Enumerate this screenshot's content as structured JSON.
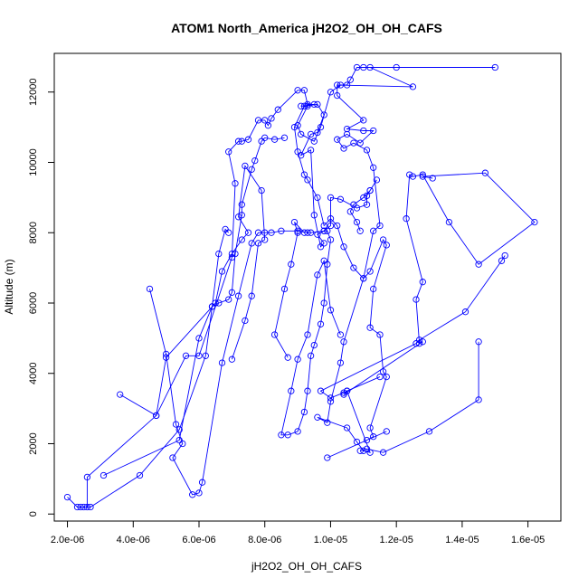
{
  "chart_data": {
    "type": "line",
    "title": "ATOM1 North_America jH2O2_OH_OH_CAFS",
    "xlabel": "jH2O2_OH_OH_CAFS",
    "ylabel": "Altitude (m)",
    "xlim": [
      1.6e-06,
      1.7e-05
    ],
    "ylim": [
      -200,
      13100
    ],
    "x_ticks": [
      2e-06,
      4e-06,
      6e-06,
      8e-06,
      1e-05,
      1.2e-05,
      1.4e-05,
      1.6e-05
    ],
    "x_tick_labels": [
      "2.0e-06",
      "4.0e-06",
      "6.0e-06",
      "8.0e-06",
      "1.0e-05",
      "1.2e-05",
      "1.4e-05",
      "1.6e-05"
    ],
    "y_ticks": [
      0,
      2000,
      4000,
      6000,
      8000,
      10000,
      12000
    ],
    "y_tick_labels": [
      "0",
      "2000",
      "4000",
      "6000",
      "8000",
      "10000",
      "12000"
    ],
    "grid": false,
    "marker": "open-circle",
    "series_color": "#0000ff",
    "series": [
      {
        "points": [
          [
            2e-06,
            480
          ],
          [
            2.3e-06,
            200
          ],
          [
            2.5e-06,
            200
          ],
          [
            2.6e-06,
            200
          ],
          [
            2.6e-06,
            1050
          ],
          [
            4.7e-06,
            2800
          ],
          [
            5.6e-06,
            4500
          ],
          [
            6e-06,
            4500
          ],
          [
            7e-06,
            7300
          ],
          [
            7.1e-06,
            9400
          ],
          [
            6.9e-06,
            10300
          ],
          [
            7.2e-06,
            10600
          ],
          [
            7.3e-06,
            10600
          ],
          [
            7.5e-06,
            10650
          ],
          [
            7.8e-06,
            11200
          ],
          [
            8e-06,
            11200
          ],
          [
            8.1e-06,
            11050
          ],
          [
            8.2e-06,
            11250
          ],
          [
            8.4e-06,
            11500
          ],
          [
            9e-06,
            12050
          ],
          [
            9.2e-06,
            12050
          ],
          [
            9.3e-06,
            11650
          ],
          [
            9.5e-06,
            11650
          ],
          [
            9.1e-06,
            11600
          ],
          [
            9.3e-06,
            11600
          ],
          [
            9e-06,
            11050
          ],
          [
            9.1e-06,
            10800
          ],
          [
            9.5e-06,
            10600
          ],
          [
            9.7e-06,
            11000
          ],
          [
            1e-05,
            12000
          ],
          [
            1.03e-05,
            12200
          ],
          [
            1.05e-05,
            12200
          ],
          [
            1.06e-05,
            12350
          ],
          [
            1.08e-05,
            12700
          ],
          [
            1.1e-05,
            12700
          ],
          [
            1.2e-05,
            12700
          ],
          [
            1.5e-05,
            12700
          ],
          [
            1.12e-05,
            12700
          ],
          [
            1.25e-05,
            12150
          ],
          [
            1.02e-05,
            12200
          ],
          [
            1.02e-05,
            11900
          ],
          [
            1.1e-05,
            11200
          ],
          [
            1.05e-05,
            10950
          ],
          [
            1.1e-05,
            10900
          ],
          [
            1.13e-05,
            10900
          ],
          [
            1.09e-05,
            10550
          ],
          [
            1.05e-05,
            10800
          ],
          [
            1.02e-05,
            10650
          ],
          [
            1.04e-05,
            10400
          ],
          [
            1.07e-05,
            10550
          ],
          [
            1.11e-05,
            10350
          ],
          [
            1.13e-05,
            9850
          ],
          [
            1.15e-05,
            8200
          ],
          [
            1.13e-05,
            8050
          ],
          [
            1.1e-05,
            6700
          ],
          [
            1.04e-05,
            4900
          ],
          [
            1.03e-05,
            4300
          ],
          [
            1e-05,
            3200
          ],
          [
            9.9e-06,
            2600
          ],
          [
            9.6e-06,
            2750
          ],
          [
            1.05e-05,
            2450
          ],
          [
            1.08e-05,
            2050
          ],
          [
            1.1e-05,
            1800
          ],
          [
            1.12e-05,
            1750
          ],
          [
            1.05e-05,
            3500
          ],
          [
            1.04e-05,
            3400
          ],
          [
            1.28e-05,
            4900
          ],
          [
            1.27e-05,
            4850
          ],
          [
            1.26e-05,
            6100
          ],
          [
            1.28e-05,
            6600
          ],
          [
            1.23e-05,
            8400
          ],
          [
            1.24e-05,
            9650
          ],
          [
            1.25e-05,
            9600
          ],
          [
            1.28e-05,
            9650
          ],
          [
            1.36e-05,
            8300
          ],
          [
            1.45e-05,
            7100
          ],
          [
            1.62e-05,
            8300
          ],
          [
            1.47e-05,
            9700
          ],
          [
            1.28e-05,
            9600
          ],
          [
            1.31e-05,
            9550
          ]
        ]
      },
      {
        "points": [
          [
            9.9e-06,
            1600
          ],
          [
            1.17e-05,
            2350
          ],
          [
            1.11e-05,
            2100
          ],
          [
            1.13e-05,
            2200
          ],
          [
            1.12e-05,
            2450
          ],
          [
            1.17e-05,
            3900
          ],
          [
            1.16e-05,
            4050
          ],
          [
            1.15e-05,
            5100
          ],
          [
            1.12e-05,
            5300
          ],
          [
            1.13e-05,
            6400
          ],
          [
            1.17e-05,
            7650
          ],
          [
            1.16e-05,
            7800
          ],
          [
            1.12e-05,
            6900
          ],
          [
            1.1e-05,
            6700
          ],
          [
            1.07e-05,
            7000
          ],
          [
            1.04e-05,
            7600
          ],
          [
            1.02e-05,
            8200
          ],
          [
            1e-05,
            8400
          ],
          [
            9.8e-06,
            8200
          ],
          [
            9.6e-06,
            9000
          ],
          [
            9.3e-06,
            9500
          ],
          [
            9.2e-06,
            9650
          ],
          [
            9e-06,
            10300
          ],
          [
            8.9e-06,
            11000
          ],
          [
            9.2e-06,
            11600
          ],
          [
            9.6e-06,
            11650
          ],
          [
            9.8e-06,
            11350
          ],
          [
            9.6e-06,
            10850
          ],
          [
            9.4e-06,
            10800
          ],
          [
            9.1e-06,
            10200
          ],
          [
            9.4e-06,
            10350
          ],
          [
            9.5e-06,
            8500
          ],
          [
            9.7e-06,
            7600
          ],
          [
            9.8e-06,
            7700
          ],
          [
            9.6e-06,
            7950
          ],
          [
            9.8e-06,
            8050
          ],
          [
            1e-05,
            8200
          ],
          [
            1e-05,
            9000
          ],
          [
            1.03e-05,
            8950
          ],
          [
            1.08e-05,
            8700
          ],
          [
            1.11e-05,
            8800
          ],
          [
            1.11e-05,
            9050
          ],
          [
            1.12e-05,
            9200
          ],
          [
            1.14e-05,
            9500
          ],
          [
            1.12e-05,
            9200
          ],
          [
            1.1e-05,
            9000
          ],
          [
            1.07e-05,
            8800
          ],
          [
            1.06e-05,
            8600
          ],
          [
            1.08e-05,
            8300
          ],
          [
            1.09e-05,
            8050
          ]
        ]
      },
      {
        "points": [
          [
            4.5e-06,
            6400
          ],
          [
            5e-06,
            4550
          ],
          [
            5.3e-06,
            2550
          ],
          [
            5.5e-06,
            2000
          ],
          [
            5.2e-06,
            1600
          ],
          [
            5.8e-06,
            550
          ],
          [
            6e-06,
            600
          ],
          [
            6.1e-06,
            900
          ],
          [
            6.7e-06,
            4300
          ],
          [
            7.2e-06,
            6200
          ],
          [
            7.6e-06,
            7700
          ],
          [
            7.8e-06,
            8000
          ],
          [
            8e-06,
            8000
          ],
          [
            8.2e-06,
            8000
          ],
          [
            8.5e-06,
            8050
          ],
          [
            9e-06,
            8050
          ],
          [
            9.3e-06,
            8000
          ],
          [
            9.4e-06,
            8000
          ],
          [
            9.8e-06,
            8050
          ],
          [
            9.9e-06,
            8050
          ],
          [
            1e-05,
            7800
          ],
          [
            9.9e-06,
            7100
          ],
          [
            9.8e-06,
            6000
          ],
          [
            9.7e-06,
            5400
          ],
          [
            9.5e-06,
            4800
          ],
          [
            9.4e-06,
            4500
          ],
          [
            9.3e-06,
            3500
          ],
          [
            9.2e-06,
            2900
          ],
          [
            9e-06,
            2350
          ],
          [
            8.7e-06,
            2250
          ],
          [
            8.5e-06,
            2250
          ],
          [
            8.8e-06,
            3500
          ],
          [
            9e-06,
            4400
          ],
          [
            9.3e-06,
            5100
          ],
          [
            9.6e-06,
            6800
          ],
          [
            9.8e-06,
            7200
          ],
          [
            1e-05,
            5800
          ],
          [
            1.03e-05,
            5100
          ]
        ]
      },
      {
        "points": [
          [
            2.4e-06,
            200
          ],
          [
            2.7e-06,
            200
          ],
          [
            4.2e-06,
            1100
          ],
          [
            5.4e-06,
            2400
          ],
          [
            6.2e-06,
            4500
          ],
          [
            6.4e-06,
            5900
          ],
          [
            6.6e-06,
            6000
          ],
          [
            6.9e-06,
            6100
          ],
          [
            7e-06,
            6300
          ],
          [
            7.1e-06,
            7400
          ],
          [
            7.3e-06,
            8500
          ],
          [
            7.3e-06,
            8800
          ],
          [
            7.6e-06,
            9800
          ],
          [
            7.7e-06,
            10050
          ],
          [
            7.9e-06,
            10600
          ],
          [
            8e-06,
            10700
          ],
          [
            8.3e-06,
            10650
          ],
          [
            8.6e-06,
            10700
          ]
        ]
      },
      {
        "points": [
          [
            3.6e-06,
            3400
          ],
          [
            4.7e-06,
            2800
          ],
          [
            5e-06,
            4450
          ],
          [
            6.5e-06,
            6000
          ],
          [
            6.7e-06,
            6900
          ],
          [
            7e-06,
            7400
          ],
          [
            7.3e-06,
            7800
          ],
          [
            7.5e-06,
            8000
          ],
          [
            7.2e-06,
            8450
          ],
          [
            7.4e-06,
            9900
          ],
          [
            7.9e-06,
            9200
          ],
          [
            8e-06,
            7800
          ],
          [
            7.8e-06,
            7700
          ],
          [
            7.6e-06,
            6200
          ],
          [
            7.4e-06,
            5500
          ],
          [
            7e-06,
            4400
          ]
        ]
      },
      {
        "points": [
          [
            3.1e-06,
            1100
          ],
          [
            5.4e-06,
            2100
          ],
          [
            6e-06,
            5000
          ],
          [
            6.4e-06,
            5900
          ],
          [
            6.6e-06,
            7400
          ],
          [
            6.8e-06,
            8100
          ],
          [
            6.9e-06,
            8000
          ]
        ]
      },
      {
        "points": [
          [
            1.45e-05,
            4900
          ],
          [
            1.45e-05,
            3250
          ],
          [
            1.3e-05,
            2350
          ],
          [
            1.16e-05,
            1750
          ],
          [
            1.11e-05,
            1850
          ],
          [
            1.09e-05,
            1800
          ]
        ]
      },
      {
        "points": [
          [
            8.7e-06,
            4450
          ],
          [
            8.3e-06,
            5100
          ],
          [
            8.6e-06,
            6400
          ],
          [
            8.8e-06,
            7100
          ],
          [
            9e-06,
            8000
          ],
          [
            8.9e-06,
            8300
          ],
          [
            9.2e-06,
            8000
          ]
        ]
      },
      {
        "points": [
          [
            1.53e-05,
            7350
          ],
          [
            1.52e-05,
            7200
          ],
          [
            1.41e-05,
            5750
          ],
          [
            1.27e-05,
            4950
          ],
          [
            1.26e-05,
            4850
          ],
          [
            9.7e-06,
            3500
          ],
          [
            1e-05,
            3300
          ],
          [
            1.04e-05,
            3450
          ],
          [
            1.05e-05,
            3500
          ],
          [
            1.15e-05,
            3900
          ]
        ]
      }
    ]
  }
}
